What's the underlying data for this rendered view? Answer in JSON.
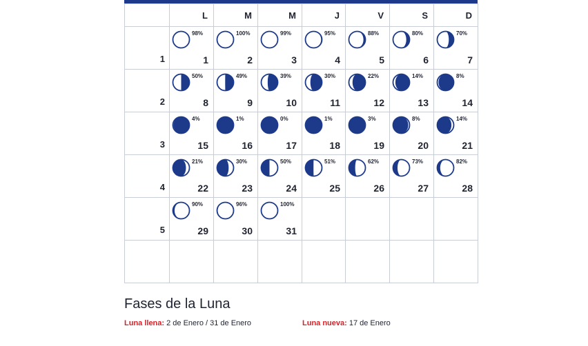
{
  "weekday_headers": [
    "",
    "L",
    "M",
    "M",
    "J",
    "V",
    "S",
    "D"
  ],
  "colors": {
    "moon_dark": "#1d3a8a",
    "moon_light": "#ffffff",
    "accent_red": "#d1232a"
  },
  "weeks": [
    {
      "week": "1",
      "days": [
        {
          "day": "1",
          "pct": "98%",
          "shade": "waxing"
        },
        {
          "day": "2",
          "pct": "100%",
          "shade": "waxing"
        },
        {
          "day": "3",
          "pct": "99%",
          "shade": "waning"
        },
        {
          "day": "4",
          "pct": "95%",
          "shade": "waning"
        },
        {
          "day": "5",
          "pct": "88%",
          "shade": "waning"
        },
        {
          "day": "6",
          "pct": "80%",
          "shade": "waning"
        },
        {
          "day": "7",
          "pct": "70%",
          "shade": "waning"
        }
      ]
    },
    {
      "week": "2",
      "days": [
        {
          "day": "8",
          "pct": "50%",
          "shade": "waning"
        },
        {
          "day": "9",
          "pct": "49%",
          "shade": "waning"
        },
        {
          "day": "10",
          "pct": "39%",
          "shade": "waning"
        },
        {
          "day": "11",
          "pct": "30%",
          "shade": "waning"
        },
        {
          "day": "12",
          "pct": "22%",
          "shade": "waning"
        },
        {
          "day": "13",
          "pct": "14%",
          "shade": "waning"
        },
        {
          "day": "14",
          "pct": "8%",
          "shade": "waning"
        }
      ]
    },
    {
      "week": "3",
      "days": [
        {
          "day": "15",
          "pct": "4%",
          "shade": "waning"
        },
        {
          "day": "16",
          "pct": "1%",
          "shade": "waning"
        },
        {
          "day": "17",
          "pct": "0%",
          "shade": "waning"
        },
        {
          "day": "18",
          "pct": "1%",
          "shade": "waxing"
        },
        {
          "day": "19",
          "pct": "3%",
          "shade": "waxing"
        },
        {
          "day": "20",
          "pct": "8%",
          "shade": "waxing"
        },
        {
          "day": "21",
          "pct": "14%",
          "shade": "waxing"
        }
      ]
    },
    {
      "week": "4",
      "days": [
        {
          "day": "22",
          "pct": "21%",
          "shade": "waxing"
        },
        {
          "day": "23",
          "pct": "30%",
          "shade": "waxing"
        },
        {
          "day": "24",
          "pct": "50%",
          "shade": "waxing"
        },
        {
          "day": "25",
          "pct": "51%",
          "shade": "waxing"
        },
        {
          "day": "26",
          "pct": "62%",
          "shade": "waxing"
        },
        {
          "day": "27",
          "pct": "73%",
          "shade": "waxing"
        },
        {
          "day": "28",
          "pct": "82%",
          "shade": "waxing"
        }
      ]
    },
    {
      "week": "5",
      "days": [
        {
          "day": "29",
          "pct": "90%",
          "shade": "waxing"
        },
        {
          "day": "30",
          "pct": "96%",
          "shade": "waxing"
        },
        {
          "day": "31",
          "pct": "100%",
          "shade": "waxing"
        },
        null,
        null,
        null,
        null
      ]
    },
    {
      "week": "",
      "days": [
        null,
        null,
        null,
        null,
        null,
        null,
        null
      ]
    }
  ],
  "phases": {
    "title": "Fases de la Luna",
    "full_moon_label": "Luna llena:",
    "full_moon_value": " 2 de Enero / 31 de Enero",
    "new_moon_label": "Luna nueva:",
    "new_moon_value": " 17 de Enero"
  }
}
